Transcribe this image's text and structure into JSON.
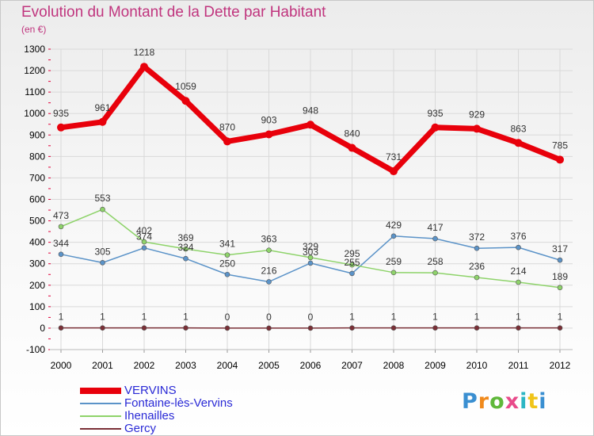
{
  "header": {
    "title": "Evolution du Montant de la Dette par Habitant",
    "subtitle": "(en €)"
  },
  "logo": {
    "text": "Proxiti"
  },
  "colors": {
    "title": "#c0357e",
    "legend_text": "#2a2ad6",
    "grid": "#d9d9d9",
    "axis_ticks": "#e0003a"
  },
  "chart_data": {
    "type": "line",
    "title": "Evolution du Montant de la Dette par Habitant",
    "subtitle": "(en €)",
    "xlabel": "",
    "ylabel": "",
    "ylim": [
      -100,
      1300
    ],
    "yticks": [
      -100,
      0,
      100,
      200,
      300,
      400,
      500,
      600,
      700,
      800,
      900,
      1000,
      1100,
      1200,
      1300
    ],
    "grid": true,
    "legend_position": "bottom-left",
    "categories": [
      "2000",
      "2001",
      "2002",
      "2003",
      "2004",
      "2005",
      "2006",
      "2007",
      "2008",
      "2009",
      "2010",
      "2011",
      "2012"
    ],
    "series": [
      {
        "name": "VERVINS",
        "color": "#e8000b",
        "values": [
          935,
          961,
          1218,
          1059,
          870,
          903,
          948,
          840,
          731,
          935,
          929,
          863,
          785
        ]
      },
      {
        "name": "Fontaine-lès-Vervins",
        "color": "#5b93c8",
        "values": [
          344,
          305,
          374,
          324,
          250,
          216,
          303,
          255,
          429,
          417,
          372,
          376,
          317
        ]
      },
      {
        "name": "Ihenailles",
        "color": "#8ed36a",
        "values": [
          473,
          553,
          402,
          369,
          341,
          363,
          329,
          295,
          259,
          258,
          236,
          214,
          189
        ]
      },
      {
        "name": "Gercy",
        "color": "#7a2f36",
        "values": [
          1,
          1,
          1,
          1,
          0,
          0,
          0,
          1,
          1,
          1,
          1,
          1,
          1
        ]
      }
    ]
  }
}
